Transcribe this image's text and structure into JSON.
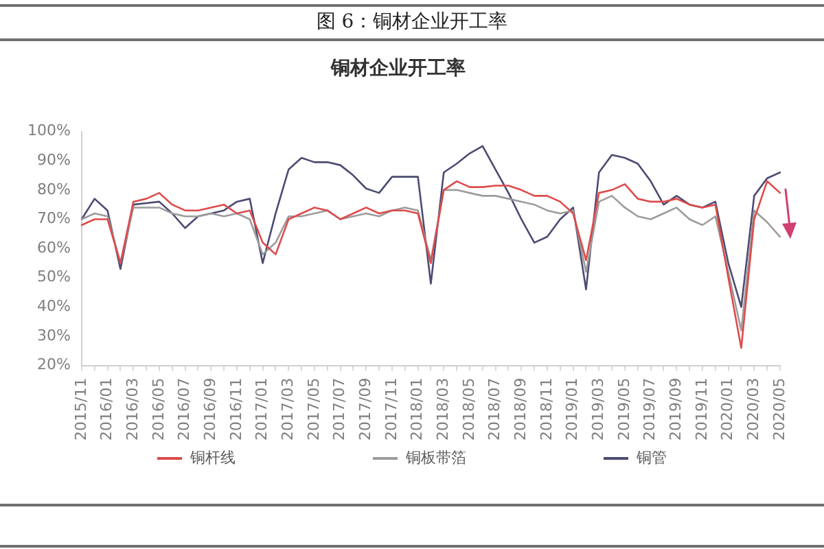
{
  "chart_data": {
    "type": "line",
    "title": "铜材企业开工率",
    "annotations": [
      "图 6：铜材企业开工率"
    ],
    "categories": [
      "2015/11",
      null,
      "2016/01",
      null,
      "2016/03",
      null,
      "2016/05",
      null,
      "2016/07",
      null,
      "2016/09",
      null,
      "2016/11",
      null,
      "2017/01",
      null,
      "2017/03",
      null,
      "2017/05",
      null,
      "2017/07",
      null,
      "2017/09",
      null,
      "2017/11",
      null,
      "2018/01",
      null,
      "2018/03",
      null,
      "2018/05",
      null,
      "2018/07",
      null,
      "2018/09",
      null,
      "2018/11",
      null,
      "2019/01",
      null,
      "2019/03",
      null,
      "2019/05",
      null,
      "2019/07",
      null,
      "2019/09",
      null,
      "2019/11",
      null,
      "2020/01",
      null,
      "2020/03",
      null,
      "2020/05"
    ],
    "series": [
      {
        "name": "铜杆线",
        "color": "#dd4b4b",
        "values": [
          68,
          70,
          70,
          55,
          76,
          77,
          79,
          75,
          73,
          73,
          74,
          75,
          72,
          73,
          62,
          58,
          70,
          72,
          74,
          73,
          70,
          72,
          74,
          72,
          73,
          73,
          72,
          55,
          80,
          83,
          81,
          81,
          81.5,
          81.5,
          80,
          78,
          78,
          76,
          72,
          56,
          79,
          80,
          82,
          77,
          76,
          76,
          77,
          75,
          74,
          75,
          50,
          26,
          70,
          83,
          79
        ]
      },
      {
        "name": "铜板带箔",
        "color": "#9c9c9c",
        "values": [
          70,
          72,
          71,
          55,
          74,
          74,
          74,
          72,
          71,
          71,
          72,
          71,
          72,
          70,
          58,
          62,
          71,
          71,
          72,
          73,
          70,
          71,
          72,
          71,
          73,
          74,
          73,
          56,
          80,
          80,
          79,
          78,
          78,
          77,
          76,
          75,
          73,
          72,
          73,
          52,
          76,
          78,
          74,
          71,
          70,
          72,
          74,
          70,
          68,
          71,
          52,
          32,
          73,
          69,
          64
        ]
      },
      {
        "name": "铜管",
        "color": "#4b4b72",
        "values": [
          70,
          77,
          73,
          53,
          75,
          75.5,
          76,
          72,
          67,
          71,
          72,
          73,
          76,
          77,
          55,
          72,
          87,
          91,
          89.5,
          89.5,
          88.5,
          85,
          80.5,
          79,
          84.5,
          84.5,
          84.5,
          48,
          86,
          89,
          92.5,
          95,
          87,
          79,
          70,
          62,
          64,
          70,
          74,
          46,
          86,
          92,
          91,
          89,
          83,
          75,
          78,
          75,
          74,
          76,
          55,
          40,
          78,
          84,
          86
        ]
      }
    ],
    "ylim": [
      20,
      100
    ],
    "yticks": [
      {
        "value": 20,
        "label": "20%"
      },
      {
        "value": 30,
        "label": "30%"
      },
      {
        "value": 40,
        "label": "40%"
      },
      {
        "value": 50,
        "label": "50%"
      },
      {
        "value": 60,
        "label": "60%"
      },
      {
        "value": 70,
        "label": "70%"
      },
      {
        "value": 80,
        "label": "80%"
      },
      {
        "value": 90,
        "label": "90%"
      },
      {
        "value": 100,
        "label": "100%"
      }
    ],
    "grid": false,
    "legend": "bottom",
    "marker": "none",
    "line_style": "solid"
  }
}
